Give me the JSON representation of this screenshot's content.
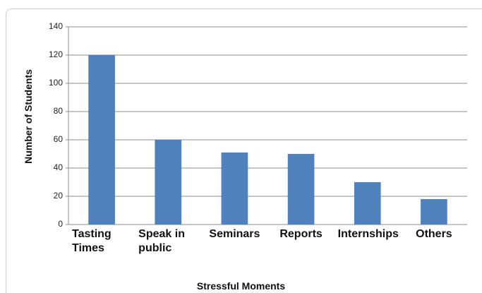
{
  "chart_data": {
    "type": "bar",
    "categories": [
      "Tasting Times",
      "Speak in public",
      "Seminars",
      "Reports",
      "Internships",
      "Others"
    ],
    "values": [
      120,
      60,
      51,
      50,
      30,
      18
    ],
    "color": "#4f81bd",
    "ylim": [
      0,
      140
    ],
    "yticks": [
      0,
      20,
      40,
      60,
      80,
      100,
      120,
      140
    ],
    "grid": true,
    "xlabel": "Stressful Moments",
    "ylabel": "Number of Students"
  }
}
